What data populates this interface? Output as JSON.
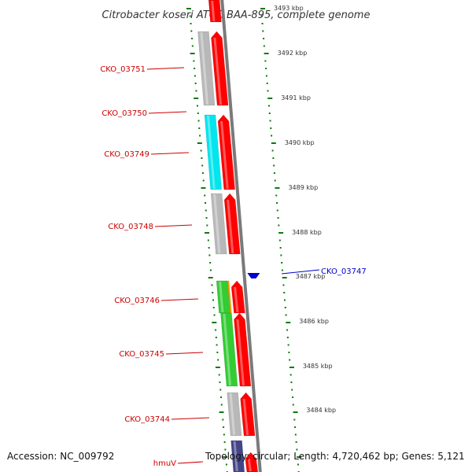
{
  "title": "Citrobacter koseri ATCC BAA-895, complete genome",
  "footer": {
    "accession": "Accession: NC_009792",
    "topology": "Topology: circular; Length: 4,720,462 bp; Genes: 5,121"
  },
  "colors": {
    "forward_cds": "#ff0000",
    "reverse_gene": "#0000cc",
    "label_red": "#cc0000",
    "label_blue": "#0000cc",
    "tick": "#0a7a0a",
    "backbone": "#7a7a7a",
    "gray": "#b8b8b8",
    "cyan": "#00e5ee",
    "green": "#33cc33",
    "orange": "#ff9900",
    "navy": "#44448a"
  },
  "scale_labels": [
    "3493 kbp",
    "3492 kbp",
    "3491 kbp",
    "3490 kbp",
    "3489 kbp",
    "3488 kbp",
    "3487 kbp",
    "3486 kbp",
    "3485 kbp",
    "3484 kbp"
  ],
  "gene_labels": [
    "CKO_03751",
    "CKO_03750",
    "CKO_03749",
    "CKO_03748",
    "CKO_03747",
    "CKO_03746",
    "CKO_03745",
    "CKO_03744",
    "hmuV"
  ]
}
